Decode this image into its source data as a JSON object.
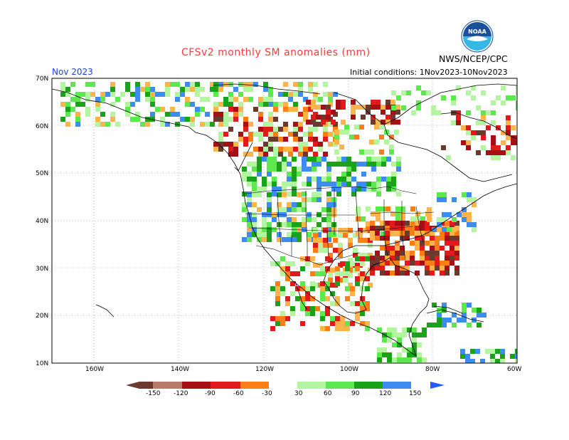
{
  "title": "CFSv2 monthly SM anomalies (mm)",
  "org": "NWS/NCEP/CPC",
  "month": "Nov 2023",
  "initial_conditions": "Initial conditions: 1Nov2023-10Nov2023",
  "logo_text": "NOAA",
  "lat_labels": [
    "70N",
    "60N",
    "50N",
    "40N",
    "30N",
    "20N",
    "10N"
  ],
  "lon_labels": [
    "160W",
    "140W",
    "120W",
    "100W",
    "80W",
    "60W"
  ],
  "colorbar": {
    "labels": [
      "-150",
      "-120",
      "-90",
      "-60",
      "-30",
      "30",
      "60",
      "90",
      "120",
      "150"
    ],
    "colors": [
      "#6b3a2e",
      "#b87b6a",
      "#a50f15",
      "#e31a1c",
      "#fd7e14",
      "#fdb44b",
      "#ffffff",
      "#b3f5a0",
      "#5ee84f",
      "#1aa31a",
      "#3d8df0",
      "#1e5cff"
    ]
  },
  "colors": {
    "title": "#ff3b3b",
    "month": "#2244cc",
    "wet_light": "#b3f5a0",
    "wet_mid": "#5ee84f",
    "wet_dark": "#1aa31a",
    "wet_blue": "#3d8df0",
    "dry_orange": "#fdb44b",
    "dry_red_orange": "#fd7e14",
    "dry_red": "#e31a1c",
    "dry_darkred": "#a50f15",
    "dry_brown": "#6b3a2e"
  }
}
